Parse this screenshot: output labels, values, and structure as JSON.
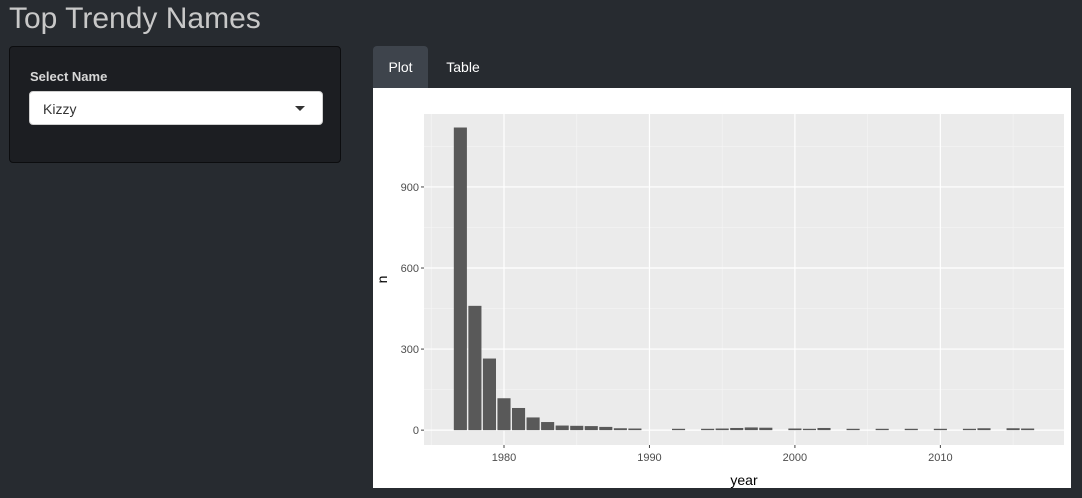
{
  "app": {
    "title": "Top Trendy Names"
  },
  "sidebar": {
    "select_label": "Select Name",
    "select_value": "Kizzy"
  },
  "tabs": [
    {
      "label": "Plot",
      "active": true
    },
    {
      "label": "Table",
      "active": false
    }
  ],
  "colors": {
    "background": "#272b30",
    "panel_background": "#1c1e22",
    "active_tab": "#3e444c",
    "plot_background": "#ebebeb",
    "bar_fill": "#595959"
  },
  "chart_data": {
    "type": "bar",
    "xlabel": "year",
    "ylabel": "n",
    "xlim": [
      1974.5,
      2018.5
    ],
    "ylim": [
      -55,
      1170
    ],
    "x_ticks": [
      1980,
      1990,
      2000,
      2010
    ],
    "y_ticks": [
      0,
      300,
      600,
      900
    ],
    "grid": true,
    "x": [
      1977,
      1978,
      1979,
      1980,
      1981,
      1982,
      1983,
      1984,
      1985,
      1986,
      1987,
      1988,
      1989,
      1992,
      1994,
      1995,
      1996,
      1997,
      1998,
      2000,
      2001,
      2002,
      2004,
      2006,
      2008,
      2010,
      2012,
      2013,
      2015,
      2016
    ],
    "values": [
      1120,
      460,
      265,
      118,
      82,
      47,
      30,
      17,
      16,
      15,
      12,
      7,
      6,
      5,
      5,
      6,
      8,
      10,
      9,
      6,
      5,
      8,
      5,
      5,
      5,
      5,
      5,
      7,
      7,
      6
    ]
  }
}
